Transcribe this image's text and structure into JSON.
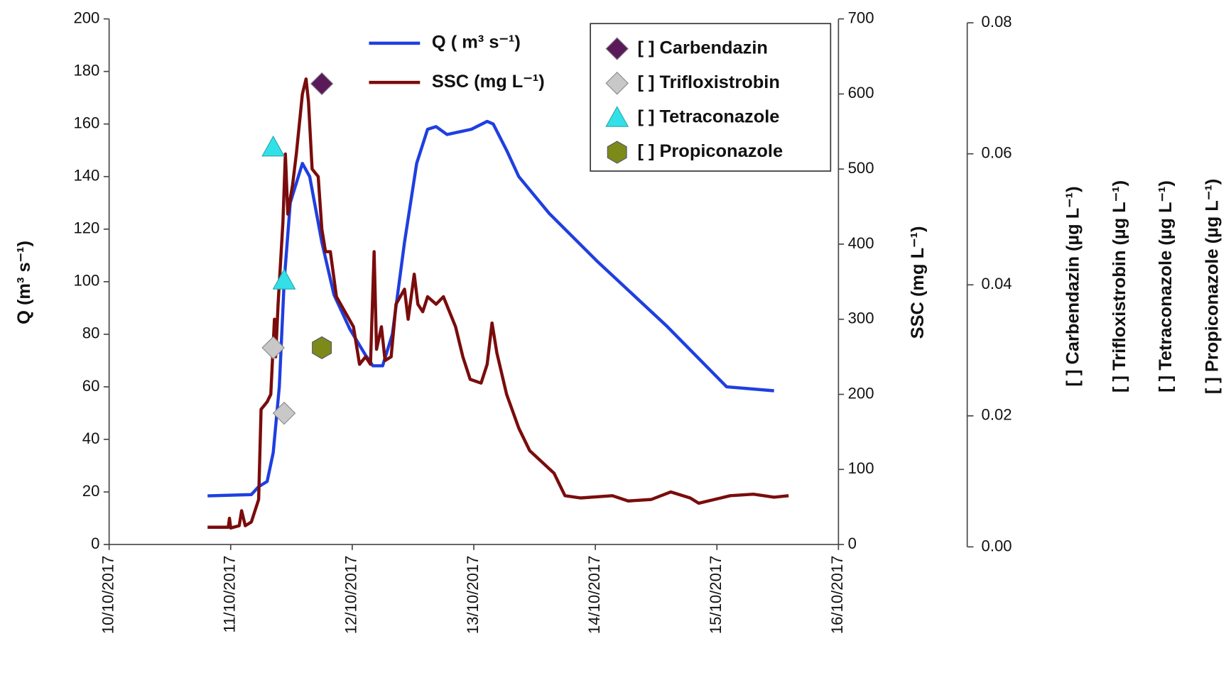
{
  "chart_data": {
    "type": "line",
    "xlim": [
      0,
      6
    ],
    "xticks": [
      {
        "value": 0,
        "label": "10/10/2017"
      },
      {
        "value": 1,
        "label": "11/10/2017"
      },
      {
        "value": 2,
        "label": "12/10/2017"
      },
      {
        "value": 3,
        "label": "13/10/2017"
      },
      {
        "value": 4,
        "label": "14/10/2017"
      },
      {
        "value": 5,
        "label": "15/10/2017"
      },
      {
        "value": 6,
        "label": "16/10/2017"
      }
    ],
    "ylabel": "Q (m³ s⁻¹)",
    "ylim": [
      0,
      200
    ],
    "yticks": [
      0,
      20,
      40,
      60,
      80,
      100,
      120,
      140,
      160,
      180,
      200
    ],
    "y2label": "SSC (mg L⁻¹)",
    "y2lim": [
      0,
      700
    ],
    "y2ticks": [
      0,
      100,
      200,
      300,
      400,
      500,
      600,
      700
    ],
    "y3labels": [
      "[ ] Carbendazin (µg L⁻¹)",
      "[ ] Trifloxistrobin (µg L⁻¹)",
      "[ ] Tetraconazole (µg L⁻¹)",
      "[ ] Propiconazole (µg L⁻¹)"
    ],
    "y3lim": [
      0,
      0.08
    ],
    "y3ticks": [
      {
        "value": 0,
        "label": "0.00"
      },
      {
        "value": 0.02,
        "label": "0.02"
      },
      {
        "value": 0.04,
        "label": "0.04"
      },
      {
        "value": 0.06,
        "label": "0.06"
      },
      {
        "value": 0.08,
        "label": "0.08"
      }
    ],
    "series": [
      {
        "name": "Q ( m³ s⁻¹)",
        "kind": "line",
        "axis": "y",
        "color": "#1f3fe0",
        "x": [
          0.81,
          1.17,
          1.23,
          1.3,
          1.35,
          1.4,
          1.44,
          1.49,
          1.59,
          1.65,
          1.75,
          1.85,
          1.98,
          2.11,
          2.17,
          2.25,
          2.33,
          2.43,
          2.53,
          2.62,
          2.69,
          2.78,
          2.88,
          2.98,
          3.11,
          3.16,
          3.27,
          3.37,
          3.62,
          4.01,
          4.59,
          5.08,
          5.47
        ],
        "values": [
          18.5,
          19,
          22,
          24,
          35,
          60,
          100,
          130,
          145,
          140,
          115,
          95,
          82,
          72,
          68,
          68,
          80,
          115,
          145,
          158,
          159,
          156,
          157,
          158,
          161,
          160,
          150,
          140,
          126,
          108,
          83,
          60,
          58.5
        ]
      },
      {
        "name": "SSC (mg L⁻¹)",
        "kind": "line",
        "axis": "y2",
        "color": "#7a0c0c",
        "x": [
          0.81,
          0.98,
          0.99,
          1.0,
          1.07,
          1.09,
          1.12,
          1.17,
          1.23,
          1.25,
          1.3,
          1.33,
          1.36,
          1.37,
          1.39,
          1.43,
          1.45,
          1.47,
          1.51,
          1.54,
          1.59,
          1.62,
          1.64,
          1.67,
          1.72,
          1.75,
          1.78,
          1.82,
          1.87,
          1.94,
          2.01,
          2.06,
          2.11,
          2.15,
          2.18,
          2.2,
          2.24,
          2.27,
          2.32,
          2.36,
          2.43,
          2.46,
          2.51,
          2.54,
          2.58,
          2.62,
          2.69,
          2.75,
          2.85,
          2.91,
          2.97,
          3.06,
          3.11,
          3.15,
          3.19,
          3.27,
          3.37,
          3.46,
          3.56,
          3.66,
          3.75,
          3.88,
          4.14,
          4.27,
          4.46,
          4.62,
          4.78,
          4.85,
          4.98,
          5.11,
          5.3,
          5.47,
          5.59
        ],
        "values": [
          23,
          23,
          35,
          22,
          25,
          45,
          25,
          30,
          60,
          180,
          190,
          200,
          300,
          250,
          320,
          430,
          520,
          440,
          480,
          520,
          600,
          620,
          590,
          500,
          490,
          420,
          390,
          390,
          330,
          310,
          290,
          240,
          250,
          240,
          390,
          260,
          290,
          245,
          250,
          320,
          340,
          300,
          360,
          320,
          310,
          330,
          320,
          330,
          290,
          250,
          220,
          215,
          240,
          295,
          255,
          200,
          155,
          125,
          110,
          95,
          65,
          62,
          65,
          58,
          60,
          70,
          62,
          55,
          60,
          65,
          67,
          63,
          65
        ]
      },
      {
        "name": "[ ] Carbendazin",
        "kind": "marker",
        "marker": "diamond",
        "axis": "y3",
        "color": "#5a1a5a",
        "x": [
          1.75
        ],
        "values": [
          0.0707
        ]
      },
      {
        "name": "[ ] Trifloxistrobin",
        "kind": "marker",
        "marker": "diamond",
        "axis": "y3",
        "color": "#c8c8c8",
        "x": [
          1.35,
          1.44
        ],
        "values": [
          0.0304,
          0.0204
        ]
      },
      {
        "name": "[ ] Tetraconazole",
        "kind": "marker",
        "marker": "triangle",
        "axis": "y3",
        "color": "#33e0e8",
        "x": [
          1.35,
          1.44
        ],
        "values": [
          0.061,
          0.0407
        ]
      },
      {
        "name": "[ ] Propiconazole",
        "kind": "marker",
        "marker": "hexagon",
        "axis": "y3",
        "color": "#7d8a1a",
        "x": [
          1.75
        ],
        "values": [
          0.0304
        ]
      }
    ]
  }
}
